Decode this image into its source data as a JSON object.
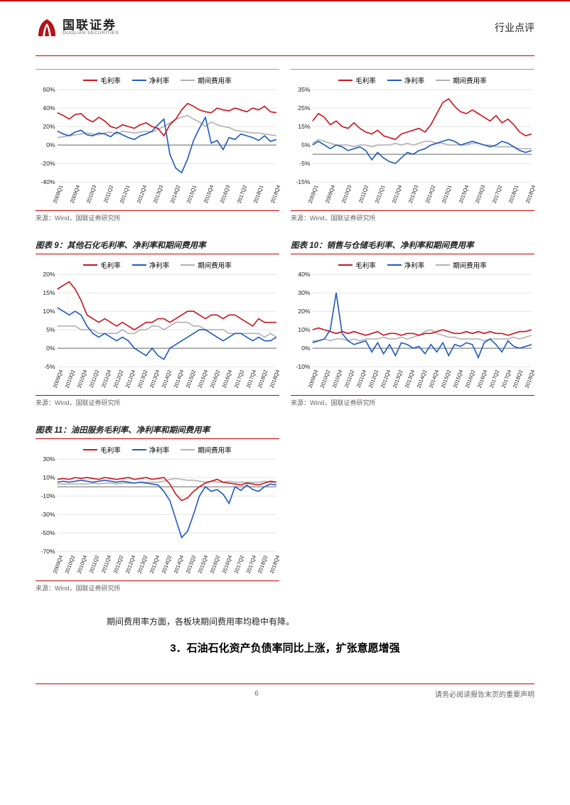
{
  "header": {
    "logo_cn": "国联证券",
    "logo_en": "GUOLIAN SECURITIES",
    "right_text": "行业点评",
    "logo_color": "#b5131a"
  },
  "legend_labels": [
    "毛利率",
    "净利率",
    "期间费用率"
  ],
  "series_colors": {
    "gross": "#c9151e",
    "net": "#1f5bbf",
    "exp": "#b2b2b2"
  },
  "x_categories": [
    "2009Q1",
    "2009Q4",
    "2010Q3",
    "2011Q2",
    "2012Q1",
    "2012Q4",
    "2013Q3",
    "2014Q2",
    "2015Q1",
    "2015Q4",
    "2016Q3",
    "2017Q2",
    "2018Q1",
    "2018Q4"
  ],
  "x_categories_alt": [
    "2009Q4",
    "2010Q2",
    "2010Q4",
    "2011Q2",
    "2011Q4",
    "2012Q2",
    "2012Q4",
    "2013Q2",
    "2013Q4",
    "2014Q2",
    "2014Q4",
    "2015Q2",
    "2015Q4",
    "2016Q2",
    "2016Q4",
    "2017Q2",
    "2017Q4",
    "2018Q2",
    "2018Q4"
  ],
  "source_text": "来源：Wind，国联证券研究所",
  "charts": [
    {
      "id": "c1",
      "title": null,
      "ylim": [
        -40,
        60
      ],
      "ystep": 20,
      "yfmt": "%",
      "gross": [
        35,
        32,
        28,
        33,
        34,
        28,
        25,
        30,
        26,
        20,
        18,
        22,
        20,
        18,
        22,
        24,
        20,
        18,
        10,
        22,
        28,
        38,
        45,
        42,
        38,
        36,
        35,
        40,
        38,
        37,
        40,
        38,
        36,
        40,
        38,
        42,
        36,
        35
      ],
      "net": [
        15,
        12,
        10,
        14,
        16,
        11,
        10,
        13,
        12,
        9,
        14,
        11,
        8,
        6,
        10,
        12,
        15,
        22,
        28,
        -10,
        -25,
        -30,
        -15,
        5,
        18,
        30,
        2,
        5,
        -5,
        8,
        6,
        12,
        10,
        8,
        5,
        10,
        4,
        6
      ],
      "exp": [
        8,
        9,
        10,
        11,
        12,
        13,
        12,
        11,
        13,
        14,
        12,
        15,
        14,
        13,
        14,
        15,
        14,
        17,
        20,
        24,
        28,
        30,
        32,
        28,
        25,
        20,
        25,
        22,
        20,
        19,
        16,
        15,
        14,
        13,
        13,
        12,
        11,
        10
      ],
      "xset": "x_categories"
    },
    {
      "id": "c2",
      "title": null,
      "ylim": [
        -15,
        35
      ],
      "ystep": 10,
      "yfmt": "%",
      "gross": [
        18,
        22,
        20,
        16,
        18,
        15,
        14,
        17,
        14,
        12,
        11,
        13,
        10,
        9,
        8,
        11,
        12,
        13,
        14,
        12,
        16,
        22,
        28,
        30,
        26,
        23,
        22,
        24,
        22,
        20,
        18,
        21,
        17,
        19,
        16,
        12,
        10,
        11
      ],
      "net": [
        5,
        7,
        5,
        3,
        5,
        4,
        2,
        3,
        4,
        2,
        -3,
        1,
        -2,
        -4,
        -5,
        -2,
        1,
        0,
        2,
        3,
        5,
        6,
        7,
        8,
        7,
        5,
        6,
        7,
        6,
        5,
        4,
        5,
        7,
        6,
        4,
        2,
        1,
        2
      ],
      "exp": [
        6,
        8,
        7,
        6,
        5,
        5,
        5,
        4,
        5,
        5,
        4,
        5,
        5,
        5,
        6,
        5,
        6,
        5,
        6,
        7,
        7,
        6,
        6,
        5,
        5,
        5,
        5,
        6,
        6,
        5,
        5,
        4,
        4,
        4,
        4,
        3,
        3,
        3
      ],
      "xset": "x_categories"
    },
    {
      "id": "c9",
      "title": "图表 9：其他石化毛利率、净利率和期间费用率",
      "ylim": [
        -5,
        20
      ],
      "ystep": 5,
      "yfmt": "%",
      "gross": [
        16,
        17,
        18,
        16,
        13,
        9,
        8,
        7,
        8,
        7,
        6,
        7,
        6,
        5,
        6,
        7,
        7,
        8,
        8,
        7,
        8,
        9,
        10,
        10,
        9,
        8,
        9,
        9,
        8,
        9,
        9,
        8,
        7,
        6,
        8,
        7,
        7,
        7
      ],
      "net": [
        11,
        10,
        9,
        10,
        9,
        6,
        4,
        3,
        4,
        3,
        2,
        3,
        2,
        0,
        -1,
        -2,
        0,
        -2,
        -3,
        0,
        1,
        2,
        3,
        4,
        5,
        5,
        4,
        3,
        2,
        3,
        4,
        4,
        3,
        2,
        3,
        2,
        2,
        3
      ],
      "exp": [
        6,
        6,
        6,
        6,
        5,
        5,
        5,
        4,
        4,
        4,
        4,
        5,
        4,
        4,
        5,
        5,
        6,
        6,
        5,
        6,
        7,
        7,
        7,
        6,
        6,
        5,
        5,
        5,
        5,
        4,
        4,
        4,
        4,
        4,
        4,
        3,
        4,
        3
      ],
      "xset": "x_categories_alt"
    },
    {
      "id": "c10",
      "title": "图表 10：销售与仓储毛利率、净利率和期间费用率",
      "ylim": [
        -10,
        40
      ],
      "ystep": 10,
      "yfmt": "%",
      "gross": [
        10,
        11,
        10,
        9,
        8,
        9,
        8,
        9,
        8,
        7,
        8,
        9,
        7,
        8,
        8,
        7,
        8,
        8,
        7,
        8,
        8,
        9,
        10,
        9,
        8,
        8,
        9,
        8,
        9,
        8,
        9,
        8,
        8,
        7,
        8,
        9,
        9,
        10
      ],
      "net": [
        3,
        4,
        5,
        10,
        30,
        8,
        4,
        2,
        3,
        4,
        -2,
        3,
        -3,
        2,
        -4,
        3,
        2,
        0,
        1,
        -3,
        2,
        -2,
        3,
        -4,
        2,
        1,
        3,
        2,
        -5,
        3,
        5,
        2,
        -2,
        4,
        1,
        0,
        1,
        2
      ],
      "exp": [
        4,
        4,
        5,
        4,
        5,
        5,
        4,
        5,
        4,
        5,
        5,
        5,
        6,
        5,
        5,
        6,
        5,
        6,
        7,
        9,
        10,
        8,
        7,
        6,
        6,
        5,
        5,
        5,
        5,
        4,
        5,
        5,
        5,
        5,
        6,
        5,
        6,
        7
      ],
      "xset": "x_categories_alt"
    },
    {
      "id": "c11",
      "title": "图表 11：油田服务毛利率、净利率和期间费用率",
      "ylim": [
        -70,
        30
      ],
      "ystep": 20,
      "yfmt": "%",
      "gross": [
        8,
        9,
        8,
        10,
        9,
        10,
        9,
        8,
        10,
        9,
        8,
        9,
        10,
        8,
        9,
        10,
        8,
        9,
        10,
        3,
        -8,
        -15,
        -12,
        -5,
        0,
        4,
        6,
        8,
        5,
        4,
        3,
        2,
        4,
        3,
        2,
        4,
        6,
        5
      ],
      "net": [
        5,
        6,
        5,
        6,
        7,
        6,
        5,
        6,
        7,
        6,
        5,
        6,
        5,
        4,
        5,
        4,
        3,
        2,
        -5,
        -15,
        -35,
        -55,
        -48,
        -30,
        -10,
        0,
        -5,
        -3,
        -8,
        -18,
        0,
        -4,
        2,
        -3,
        -5,
        0,
        3,
        2
      ],
      "exp": [
        3,
        3,
        3,
        3,
        3,
        3,
        4,
        3,
        4,
        4,
        3,
        4,
        4,
        4,
        5,
        5,
        5,
        5,
        6,
        8,
        9,
        8,
        7,
        7,
        6,
        5,
        6,
        5,
        5,
        6,
        5,
        5,
        5,
        5,
        5,
        6,
        5,
        5
      ],
      "xset": "x_categories_alt"
    }
  ],
  "grid_color": "#d9d9d9",
  "axis_color": "#666666",
  "text": {
    "body": "期间费用率方面，各板块期间费用率均稳中有降。",
    "heading_num": "3．",
    "heading": "石油石化资产负债率同比上涨，扩张意愿增强"
  },
  "footer": {
    "page_num": "6",
    "right": "请务必阅读报告末页的重要声明"
  }
}
